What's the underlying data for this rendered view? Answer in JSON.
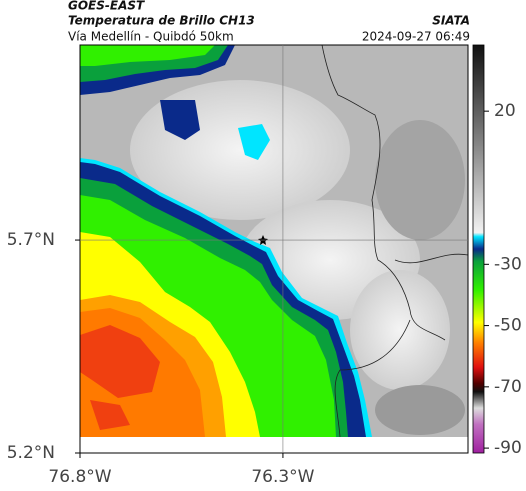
{
  "header": {
    "satellite": "GOES-EAST",
    "product": "Temperatura de Brillo CH13",
    "org": "SIATA",
    "route": "Vía Medellín - Quibdó 50km",
    "datetime": "2024-09-27 06:49"
  },
  "map": {
    "xlim": [
      -76.8,
      -75.844
    ],
    "ylim": [
      5.2,
      6.158
    ],
    "xticks": [
      {
        "value": -76.8,
        "label": "76.8°W"
      },
      {
        "value": -76.3,
        "label": "76.3°W"
      }
    ],
    "yticks": [
      {
        "value": 5.2,
        "label": "5.2°N"
      },
      {
        "value": 5.7,
        "label": "5.7°N"
      }
    ]
  },
  "colorbar": {
    "lim": [
      -91.6,
      41.6
    ],
    "ticks": [
      20,
      -30,
      -50,
      -70,
      -90
    ]
  }
}
